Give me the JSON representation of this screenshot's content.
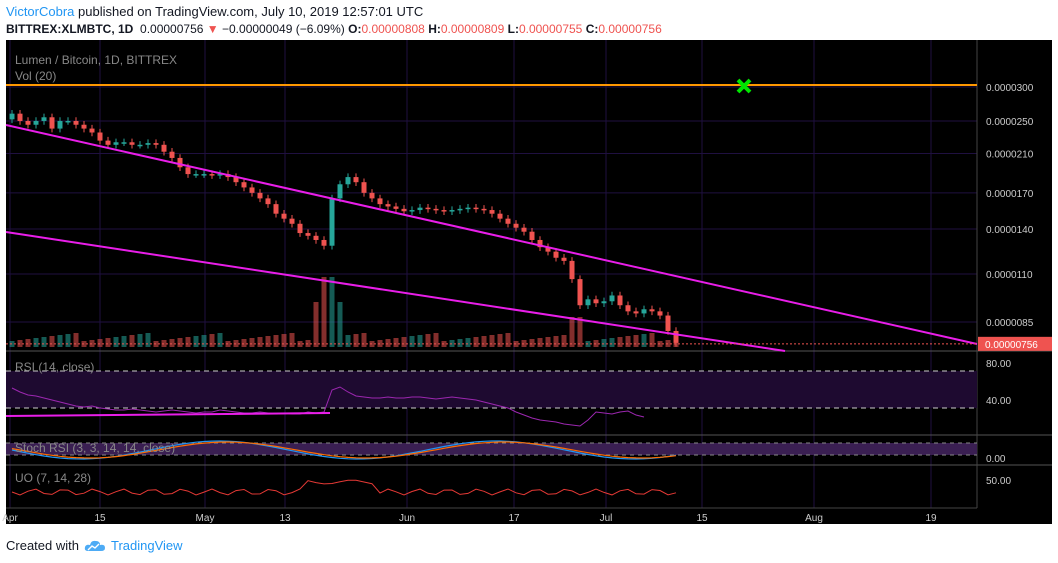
{
  "header": {
    "author": "VictorCobra",
    "published_text": "published on TradingView.com, July 10, 2019 12:57:01 UTC",
    "symbol": "BITTREX:XLMBTC, 1D",
    "last": "0.00000756",
    "change_arrow": "▼",
    "change": "−0.00000049 (−6.09%)",
    "o_label": "O:",
    "o": "0.00000808",
    "h_label": "H:",
    "h": "0.00000809",
    "l_label": "L:",
    "l": "0.00000755",
    "c_label": "C:",
    "c": "0.00000756"
  },
  "footer": {
    "created_with": "Created with",
    "brand": "TradingView"
  },
  "colors": {
    "background": "#000000",
    "up": "#26a69a",
    "down": "#ef5350",
    "trendline": "#e91ee9",
    "resistance": "#ff9800",
    "target_marker": "#00e600",
    "oscillator": "#9c27b0",
    "stoch_k": "#2196f3",
    "stoch_d": "#ff6d00",
    "uo": "#e53935"
  },
  "chart_data": {
    "type": "candlestick",
    "title": "Lumen / Bitcoin, 1D, BITTREX",
    "volume_label": "Vol (20)",
    "y_axis": {
      "scale": "log",
      "range": [
        6.6e-06,
        3.5e-06
      ],
      "ticks": [
        "0.0000300",
        "0.0000250",
        "0.0000210",
        "0.0000170",
        "0.0000140",
        "0.0000110",
        "0.0000085"
      ],
      "current_price_label": "0.00000756"
    },
    "x_axis": {
      "ticks": [
        "Apr",
        "15",
        "May",
        "13",
        "Jun",
        "17",
        "Jul",
        "15",
        "Aug",
        "19"
      ]
    },
    "candles_approx_close": [
      2.6e-05,
      2.5e-05,
      2.45e-05,
      2.5e-05,
      2.55e-05,
      2.4e-05,
      2.5e-05,
      2.5e-05,
      2.45e-05,
      2.4e-05,
      2.35e-05,
      2.25e-05,
      2.2e-05,
      2.23e-05,
      2.23e-05,
      2.2e-05,
      2.2e-05,
      2.22e-05,
      2.2e-05,
      2.12e-05,
      2.05e-05,
      1.95e-05,
      1.88e-05,
      1.88e-05,
      1.88e-05,
      1.87e-05,
      1.88e-05,
      1.85e-05,
      1.8e-05,
      1.75e-05,
      1.7e-05,
      1.65e-05,
      1.6e-05,
      1.52e-05,
      1.48e-05,
      1.44e-05,
      1.37e-05,
      1.35e-05,
      1.32e-05,
      1.28e-05,
      1.65e-05,
      1.78e-05,
      1.85e-05,
      1.8e-05,
      1.7e-05,
      1.65e-05,
      1.6e-05,
      1.58e-05,
      1.56e-05,
      1.54e-05,
      1.55e-05,
      1.57e-05,
      1.56e-05,
      1.55e-05,
      1.54e-05,
      1.55e-05,
      1.56e-05,
      1.57e-05,
      1.56e-05,
      1.55e-05,
      1.52e-05,
      1.48e-05,
      1.44e-05,
      1.41e-05,
      1.38e-05,
      1.32e-05,
      1.27e-05,
      1.24e-05,
      1.2e-05,
      1.18e-05,
      1.07e-05,
      9.3e-06,
      9.6e-06,
      9.4e-06,
      9.5e-06,
      9.8e-06,
      9.3e-06,
      9e-06,
      8.9e-06,
      9.1e-06,
      9e-06,
      8.8e-06,
      8.1e-06,
      7.6e-06
    ],
    "resistance_level": 3e-05,
    "rsi": {
      "label": "RSI (14, close)",
      "ticks": [
        "80.00",
        "40.00"
      ],
      "levels": [
        70,
        30
      ]
    },
    "stoch": {
      "label": "Stoch RSI (3, 3, 14, 14, close)",
      "ticks": [
        "0.00"
      ]
    },
    "uo": {
      "label": "UO (7, 14, 28)",
      "ticks": [
        "50.00"
      ]
    }
  }
}
